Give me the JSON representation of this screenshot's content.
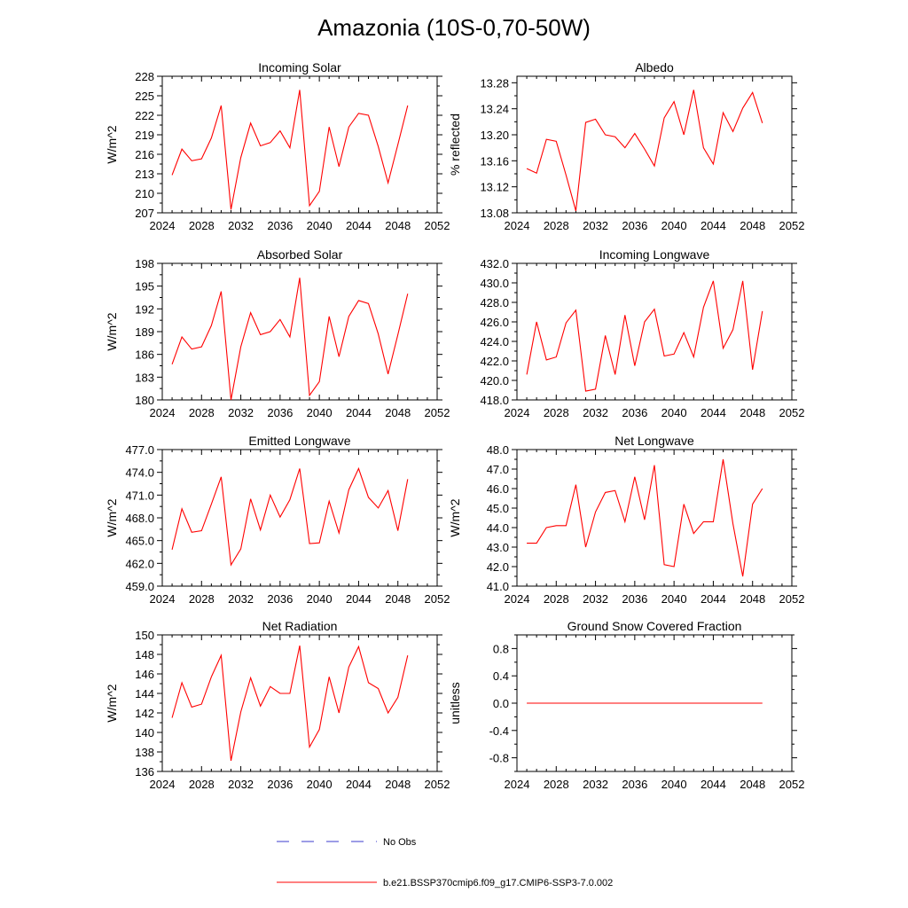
{
  "figure": {
    "title": "Amazonia (10S-0,70-50W)",
    "legend": [
      {
        "label": "No Obs",
        "style": "dashed",
        "color": "#3b3bcc"
      },
      {
        "label": "b.e21.BSSP370cmip6.f09_g17.CMIP6-SSP3-7.0.002",
        "style": "solid",
        "color": "#ff0000"
      }
    ]
  },
  "chart_data": [
    {
      "type": "line",
      "title": "Incoming Solar",
      "ylabel": "W/m^2",
      "x": [
        2025,
        2026,
        2027,
        2028,
        2029,
        2030,
        2031,
        2032,
        2033,
        2034,
        2035,
        2036,
        2037,
        2038,
        2039,
        2040,
        2041,
        2042,
        2043,
        2044,
        2045,
        2046,
        2047,
        2048,
        2049
      ],
      "series": [
        {
          "color": "#ff0000",
          "values": [
            212.8,
            216.8,
            215.0,
            215.3,
            218.5,
            223.5,
            207.5,
            215.5,
            220.8,
            217.3,
            217.8,
            219.6,
            217.0,
            225.9,
            208.1,
            210.3,
            220.2,
            214.1,
            220.2,
            222.3,
            222.0,
            217.2,
            211.6,
            217.5,
            223.5
          ]
        }
      ],
      "xlim": [
        2024,
        2052
      ],
      "ylim": [
        207,
        228
      ],
      "xticks": [
        "2024",
        "2028",
        "2032",
        "2036",
        "2040",
        "2044",
        "2048",
        "2052"
      ],
      "yticks": [
        "207",
        "210",
        "213",
        "216",
        "219",
        "222",
        "225",
        "228"
      ],
      "ytick_values": [
        207,
        210,
        213,
        216,
        219,
        222,
        225,
        228
      ]
    },
    {
      "type": "line",
      "title": "Albedo",
      "ylabel": "% reflected",
      "x": [
        2025,
        2026,
        2027,
        2028,
        2029,
        2030,
        2031,
        2032,
        2033,
        2034,
        2035,
        2036,
        2037,
        2038,
        2039,
        2040,
        2041,
        2042,
        2043,
        2044,
        2045,
        2046,
        2047,
        2048,
        2049
      ],
      "series": [
        {
          "color": "#ff0000",
          "values": [
            13.148,
            13.141,
            13.193,
            13.19,
            13.138,
            13.083,
            13.219,
            13.224,
            13.2,
            13.197,
            13.18,
            13.202,
            13.178,
            13.152,
            13.226,
            13.251,
            13.2,
            13.269,
            13.18,
            13.155,
            13.234,
            13.205,
            13.241,
            13.265,
            13.218
          ]
        }
      ],
      "xlim": [
        2024,
        2052
      ],
      "ylim": [
        13.08,
        13.29
      ],
      "xticks": [
        "2024",
        "2028",
        "2032",
        "2036",
        "2040",
        "2044",
        "2048",
        "2052"
      ],
      "yticks": [
        "13.08",
        "13.12",
        "13.16",
        "13.20",
        "13.24",
        "13.28"
      ],
      "ytick_values": [
        13.08,
        13.12,
        13.16,
        13.2,
        13.24,
        13.28
      ]
    },
    {
      "type": "line",
      "title": "Absorbed Solar",
      "ylabel": "W/m^2",
      "x": [
        2025,
        2026,
        2027,
        2028,
        2029,
        2030,
        2031,
        2032,
        2033,
        2034,
        2035,
        2036,
        2037,
        2038,
        2039,
        2040,
        2041,
        2042,
        2043,
        2044,
        2045,
        2046,
        2047,
        2048,
        2049
      ],
      "series": [
        {
          "color": "#ff0000",
          "values": [
            184.7,
            188.3,
            186.7,
            187.0,
            189.8,
            194.3,
            180.0,
            187.0,
            191.5,
            188.6,
            189.0,
            190.6,
            188.3,
            196.1,
            180.6,
            182.4,
            191.0,
            185.7,
            191.0,
            193.1,
            192.7,
            188.7,
            183.4,
            188.6,
            194.0
          ]
        }
      ],
      "xlim": [
        2024,
        2052
      ],
      "ylim": [
        180,
        198
      ],
      "xticks": [
        "2024",
        "2028",
        "2032",
        "2036",
        "2040",
        "2044",
        "2048",
        "2052"
      ],
      "yticks": [
        "180",
        "183",
        "186",
        "189",
        "192",
        "195",
        "198"
      ],
      "ytick_values": [
        180,
        183,
        186,
        189,
        192,
        195,
        198
      ]
    },
    {
      "type": "line",
      "title": "Incoming Longwave",
      "ylabel": "",
      "x": [
        2025,
        2026,
        2027,
        2028,
        2029,
        2030,
        2031,
        2032,
        2033,
        2034,
        2035,
        2036,
        2037,
        2038,
        2039,
        2040,
        2041,
        2042,
        2043,
        2044,
        2045,
        2046,
        2047,
        2048,
        2049
      ],
      "series": [
        {
          "color": "#ff0000",
          "values": [
            420.6,
            426.0,
            422.1,
            422.4,
            425.9,
            427.2,
            418.9,
            419.1,
            424.6,
            420.6,
            426.7,
            421.5,
            426.0,
            427.3,
            422.5,
            422.7,
            424.9,
            422.4,
            427.5,
            430.2,
            423.3,
            425.2,
            430.2,
            421.1,
            427.1
          ]
        }
      ],
      "xlim": [
        2024,
        2052
      ],
      "ylim": [
        418,
        432
      ],
      "xticks": [
        "2024",
        "2028",
        "2032",
        "2036",
        "2040",
        "2044",
        "2048",
        "2052"
      ],
      "yticks": [
        "418.0",
        "420.0",
        "422.0",
        "424.0",
        "426.0",
        "428.0",
        "430.0",
        "432.0"
      ],
      "ytick_values": [
        418,
        420,
        422,
        424,
        426,
        428,
        430,
        432
      ]
    },
    {
      "type": "line",
      "title": "Emitted Longwave",
      "ylabel": "W/m^2",
      "x": [
        2025,
        2026,
        2027,
        2028,
        2029,
        2030,
        2031,
        2032,
        2033,
        2034,
        2035,
        2036,
        2037,
        2038,
        2039,
        2040,
        2041,
        2042,
        2043,
        2044,
        2045,
        2046,
        2047,
        2048,
        2049
      ],
      "series": [
        {
          "color": "#ff0000",
          "values": [
            463.8,
            469.2,
            466.1,
            466.3,
            469.8,
            473.4,
            461.8,
            463.9,
            470.5,
            466.4,
            471.0,
            468.1,
            470.4,
            474.5,
            464.6,
            464.7,
            470.2,
            466.0,
            471.7,
            474.5,
            470.7,
            469.3,
            471.6,
            466.3,
            473.1
          ]
        }
      ],
      "xlim": [
        2024,
        2052
      ],
      "ylim": [
        459,
        477
      ],
      "xticks": [
        "2024",
        "2028",
        "2032",
        "2036",
        "2040",
        "2044",
        "2048",
        "2052"
      ],
      "yticks": [
        "459.0",
        "462.0",
        "465.0",
        "468.0",
        "471.0",
        "474.0",
        "477.0"
      ],
      "ytick_values": [
        459,
        462,
        465,
        468,
        471,
        474,
        477
      ]
    },
    {
      "type": "line",
      "title": "Net Longwave",
      "ylabel": "W/m^2",
      "x": [
        2025,
        2026,
        2027,
        2028,
        2029,
        2030,
        2031,
        2032,
        2033,
        2034,
        2035,
        2036,
        2037,
        2038,
        2039,
        2040,
        2041,
        2042,
        2043,
        2044,
        2045,
        2046,
        2047,
        2048,
        2049
      ],
      "series": [
        {
          "color": "#ff0000",
          "values": [
            43.2,
            43.2,
            44.0,
            44.1,
            44.1,
            46.2,
            43.0,
            44.8,
            45.8,
            45.9,
            44.3,
            46.6,
            44.4,
            47.2,
            42.1,
            42.0,
            45.2,
            43.7,
            44.3,
            44.3,
            47.5,
            44.2,
            41.5,
            45.2,
            46.0
          ]
        }
      ],
      "xlim": [
        2024,
        2052
      ],
      "ylim": [
        41,
        48
      ],
      "xticks": [
        "2024",
        "2028",
        "2032",
        "2036",
        "2040",
        "2044",
        "2048",
        "2052"
      ],
      "yticks": [
        "41.0",
        "42.0",
        "43.0",
        "44.0",
        "45.0",
        "46.0",
        "47.0",
        "48.0"
      ],
      "ytick_values": [
        41,
        42,
        43,
        44,
        45,
        46,
        47,
        48
      ]
    },
    {
      "type": "line",
      "title": "Net Radiation",
      "ylabel": "W/m^2",
      "x": [
        2025,
        2026,
        2027,
        2028,
        2029,
        2030,
        2031,
        2032,
        2033,
        2034,
        2035,
        2036,
        2037,
        2038,
        2039,
        2040,
        2041,
        2042,
        2043,
        2044,
        2045,
        2046,
        2047,
        2048,
        2049
      ],
      "series": [
        {
          "color": "#ff0000",
          "values": [
            141.5,
            145.1,
            142.6,
            142.9,
            145.7,
            147.9,
            137.1,
            142.1,
            145.6,
            142.7,
            144.7,
            144.0,
            144.0,
            148.9,
            138.5,
            140.3,
            145.7,
            142.0,
            146.7,
            148.8,
            145.1,
            144.5,
            142.0,
            143.6,
            147.9
          ]
        }
      ],
      "xlim": [
        2024,
        2052
      ],
      "ylim": [
        136,
        150
      ],
      "xticks": [
        "2024",
        "2028",
        "2032",
        "2036",
        "2040",
        "2044",
        "2048",
        "2052"
      ],
      "yticks": [
        "136",
        "138",
        "140",
        "142",
        "144",
        "146",
        "148",
        "150"
      ],
      "ytick_values": [
        136,
        138,
        140,
        142,
        144,
        146,
        148,
        150
      ]
    },
    {
      "type": "line",
      "title": "Ground Snow Covered Fraction",
      "ylabel": "unitless",
      "x": [
        2025,
        2026,
        2027,
        2028,
        2029,
        2030,
        2031,
        2032,
        2033,
        2034,
        2035,
        2036,
        2037,
        2038,
        2039,
        2040,
        2041,
        2042,
        2043,
        2044,
        2045,
        2046,
        2047,
        2048,
        2049
      ],
      "series": [
        {
          "color": "#ff0000",
          "values": [
            0,
            0,
            0,
            0,
            0,
            0,
            0,
            0,
            0,
            0,
            0,
            0,
            0,
            0,
            0,
            0,
            0,
            0,
            0,
            0,
            0,
            0,
            0,
            0,
            0
          ]
        }
      ],
      "xlim": [
        2024,
        2052
      ],
      "ylim": [
        -1.0,
        1.0
      ],
      "xticks": [
        "2024",
        "2028",
        "2032",
        "2036",
        "2040",
        "2044",
        "2048",
        "2052"
      ],
      "yticks": [
        "-0.8",
        "-0.4",
        "0.0",
        "0.4",
        "0.8"
      ],
      "ytick_values": [
        -0.8,
        -0.4,
        0.0,
        0.4,
        0.8
      ]
    }
  ]
}
